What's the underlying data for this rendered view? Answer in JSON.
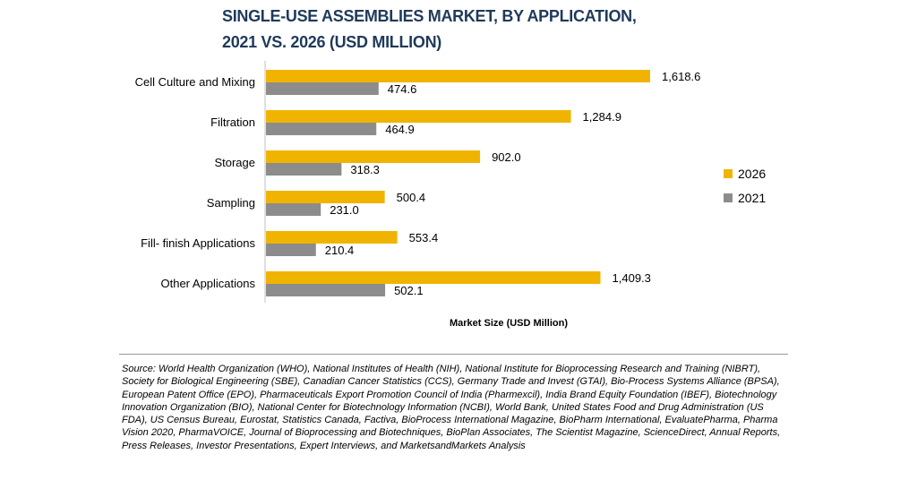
{
  "title": {
    "line1": "SINGLE-USE ASSEMBLIES MARKET, BY APPLICATION,",
    "line2": "2021 VS. 2026 (USD MILLION)"
  },
  "legend": {
    "position": "right"
  },
  "source_text": "Source: World Health Organization (WHO), National Institutes of Health (NIH), National Institute for Bioprocessing Research and Training (NIBRT), Society for Biological Engineering (SBE), Canadian Cancer Statistics (CCS), Germany Trade and Invest (GTAI), Bio-Process Systems Alliance (BPSA), European Patent Office (EPO), Pharmaceuticals Export Promotion Council of India (Pharmexcil), India Brand Equity Foundation (IBEF), Biotechnology Innovation Organization (BIO), National Center for Biotechnology Information (NCBI), World Bank, United States Food and Drug Administration (US FDA), US Census Bureau, Eurostat, Statistics Canada, Factiva, BioProcess International Magazine, BioPharm International, EvaluatePharma, Pharma Vision 2020, PharmaVOICE, Journal of Bioprocessing and Biotechniques, BioPlan Associates, The Scientist Magazine, ScienceDirect, Annual Reports, Press Releases, Investor Presentations, Expert Interviews, and MarketsandMarkets Analysis",
  "chart_data": {
    "type": "bar",
    "orientation": "horizontal",
    "title": "SINGLE-USE ASSEMBLIES MARKET, BY APPLICATION, 2021 VS. 2026 (USD MILLION)",
    "xlabel": "Market Size (USD Million)",
    "ylabel": "",
    "xlim": [
      0,
      1700
    ],
    "grid": false,
    "categories": [
      "Cell Culture and Mixing",
      "Filtration",
      "Storage",
      "Sampling",
      "Fill- finish Applications",
      "Other Applications"
    ],
    "series": [
      {
        "name": "2026",
        "color": "#f0b400",
        "values": [
          1618.6,
          1284.9,
          902.0,
          500.4,
          553.4,
          1409.3
        ],
        "labels": [
          "1,618.6",
          "1,284.9",
          "902.0",
          "500.4",
          "553.4",
          "1,409.3"
        ]
      },
      {
        "name": "2021",
        "color": "#8c8c8c",
        "values": [
          474.6,
          464.9,
          318.3,
          231.0,
          210.4,
          502.1
        ],
        "labels": [
          "474.6",
          "464.9",
          "318.3",
          "231.0",
          "210.4",
          "502.1"
        ]
      }
    ]
  }
}
